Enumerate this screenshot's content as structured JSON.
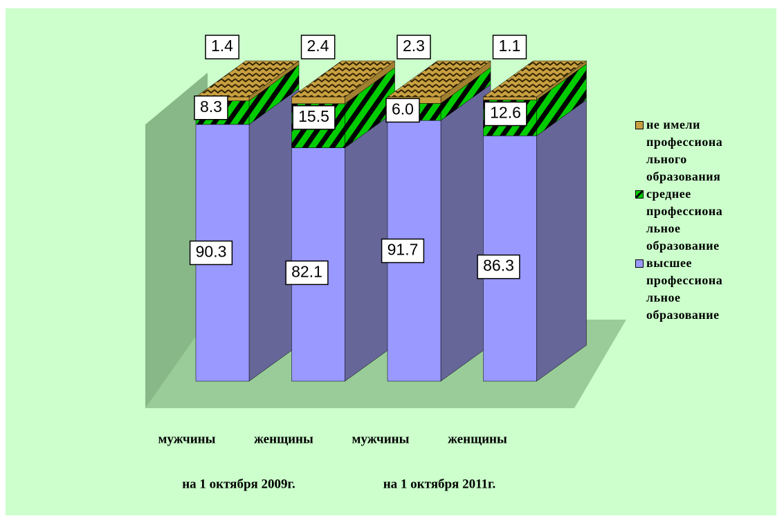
{
  "chart_data": {
    "type": "bar3d_stacked",
    "categories": [
      "мужчины",
      "женщины",
      "мужчины",
      "женщины"
    ],
    "groups": [
      "на 1 октября 2009г.",
      "на 1 октября 2011г."
    ],
    "ylim": [
      0,
      100
    ],
    "series": [
      {
        "name": "высшее профессиональное образование",
        "color": "#9999ff",
        "values": [
          90.3,
          82.1,
          91.7,
          86.3
        ]
      },
      {
        "name": "среднее профессиональное образование",
        "color": "#00cc00",
        "values": [
          8.3,
          15.5,
          6.0,
          12.6
        ],
        "value_labels": [
          "8.3",
          "15.5",
          "6.0",
          "12.6"
        ]
      },
      {
        "name": "не имели профессионального образования",
        "color": "#c8a040",
        "values": [
          1.4,
          2.4,
          2.3,
          1.1
        ]
      }
    ]
  }
}
